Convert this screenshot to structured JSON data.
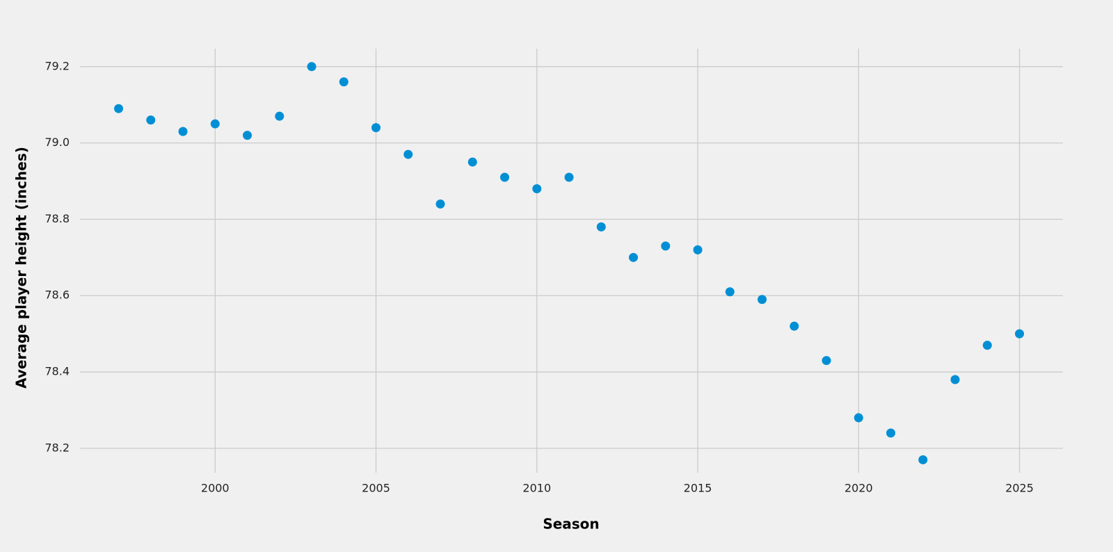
{
  "chart_data": {
    "type": "scatter",
    "x_label": "Season",
    "y_label": "Average player height (inches)",
    "color": "#008fd5",
    "grid": true,
    "x": [
      1997,
      1998,
      1999,
      2000,
      2001,
      2002,
      2003,
      2004,
      2005,
      2006,
      2007,
      2008,
      2009,
      2010,
      2011,
      2012,
      2013,
      2014,
      2015,
      2016,
      2017,
      2018,
      2019,
      2020,
      2021,
      2022,
      2023,
      2024,
      2025
    ],
    "values": [
      79.09,
      79.06,
      79.03,
      79.05,
      79.02,
      79.07,
      79.2,
      79.16,
      79.04,
      78.97,
      78.84,
      78.95,
      78.91,
      78.88,
      78.91,
      78.78,
      78.7,
      78.73,
      78.72,
      78.61,
      78.59,
      78.52,
      78.43,
      78.28,
      78.24,
      78.17,
      78.38,
      78.47,
      78.5
    ],
    "xlim": [
      1995.8,
      2026.35
    ],
    "ylim": [
      78.136,
      79.247
    ],
    "xticks": [
      2000,
      2005,
      2010,
      2015,
      2020,
      2025
    ],
    "yticks": [
      78.2,
      78.4,
      78.6,
      78.8,
      {
        "value": 79,
        "label": "79.0"
      },
      79.2
    ]
  }
}
